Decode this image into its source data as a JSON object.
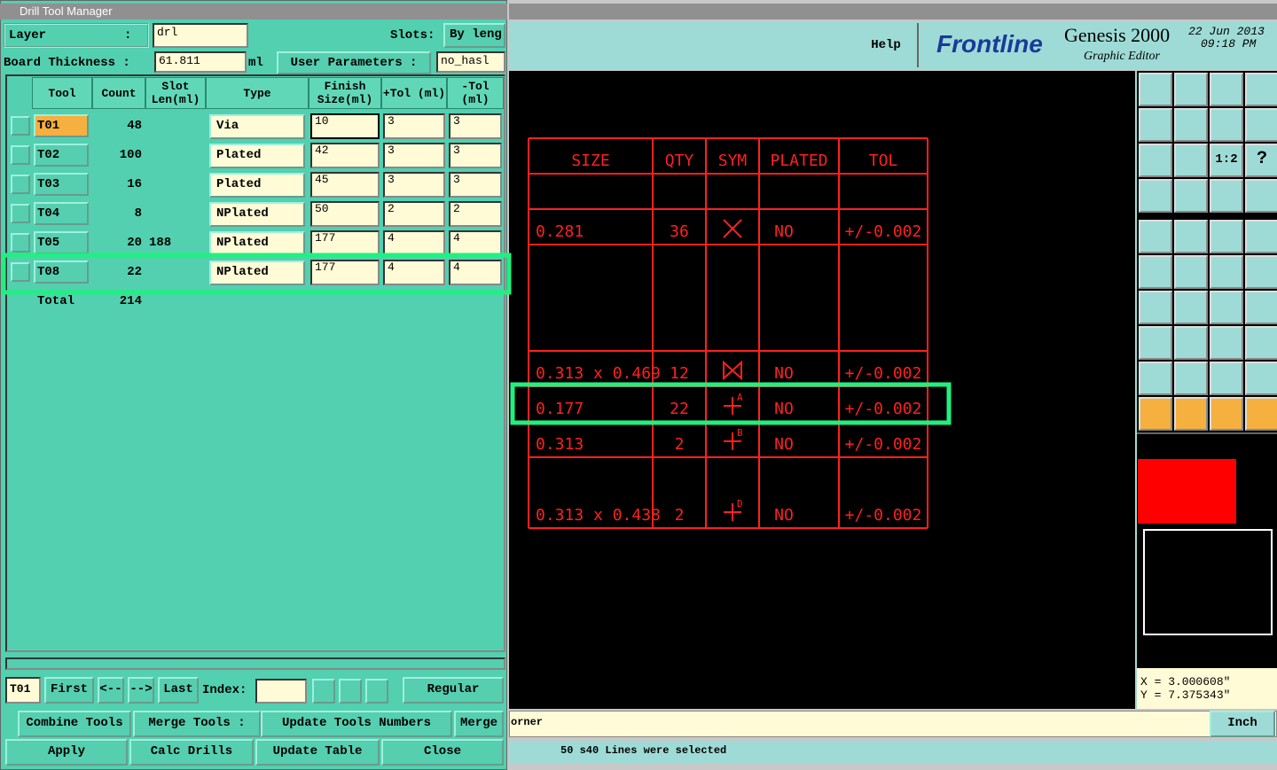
{
  "left_window": {
    "title": "Drill Tool Manager",
    "layer_label": "Layer",
    "layer_colon": ":",
    "layer_value": "drl",
    "slots_label": "Slots:",
    "slots_value": "By leng",
    "board_thickness_label": "Board Thickness :",
    "board_thickness_value": "61.811",
    "board_thickness_unit": "ml",
    "user_params_label": "User Parameters :",
    "user_params_value": "no_hasl",
    "table": {
      "headers": [
        "Tool",
        "Count",
        "Slot Len(ml)",
        "Type",
        "Finish Size(ml)",
        "+Tol (ml)",
        "-Tol (ml)"
      ],
      "rows": [
        [
          "T01",
          48,
          null,
          "Via",
          "10",
          "3",
          "3"
        ],
        [
          "T02",
          100,
          null,
          "Plated",
          "42",
          "3",
          "3"
        ],
        [
          "T03",
          16,
          null,
          "Plated",
          "45",
          "3",
          "3"
        ],
        [
          "T04",
          8,
          null,
          "NPlated",
          "50",
          "2",
          "2"
        ],
        [
          "T05",
          20,
          188,
          "NPlated",
          "177",
          "4",
          "4"
        ],
        [
          "T08",
          22,
          null,
          "NPlated",
          "177",
          "4",
          "4"
        ]
      ],
      "total_label": "Total",
      "total_count": 214
    },
    "current_tool": "T01",
    "nav_buttons": [
      "First",
      "<--",
      "-->",
      "Last"
    ],
    "index_label": "Index:",
    "mode": "Regular",
    "action_buttons": [
      "Combine Tools",
      "Merge Tools :",
      "Update Tools Numbers",
      "Merge"
    ],
    "bottom_buttons": [
      "Apply",
      "Calc Drills",
      "Update Table",
      "Close"
    ]
  },
  "right_window": {
    "help": "Help",
    "brand": "Frontline",
    "product": "Genesis 2000",
    "subtitle": "Graphic Editor",
    "date": "22 Jun 2013",
    "time": "09:18 PM",
    "icon_scale": "1:2",
    "icon_help": "?",
    "drawing": {
      "headers": [
        "SIZE",
        "QTY",
        "SYM",
        "PLATED",
        "TOL"
      ],
      "rows": [
        {
          "size": "0.281",
          "qty": "36",
          "plated": "NO",
          "tol": "+/-0.002"
        },
        {
          "size": "0.313 x 0.469",
          "qty": "12",
          "plated": "NO",
          "tol": "+/-0.002"
        },
        {
          "size": "0.177",
          "qty": "22",
          "sym_letter": "A",
          "plated": "NO",
          "tol": "+/-0.002"
        },
        {
          "size": "0.313",
          "qty": "2",
          "sym_letter": "B",
          "plated": "NO",
          "tol": "+/-0.002"
        },
        {
          "size": "0.313 x 0.438",
          "qty": "2",
          "sym_letter": "D",
          "plated": "NO",
          "tol": "+/-0.002"
        }
      ]
    },
    "coord_x": "X = 3.000608\"",
    "coord_y": "Y = 7.375343\"",
    "prompt": "orner",
    "unit": "Inch",
    "status": "50 s40 Lines were selected"
  }
}
